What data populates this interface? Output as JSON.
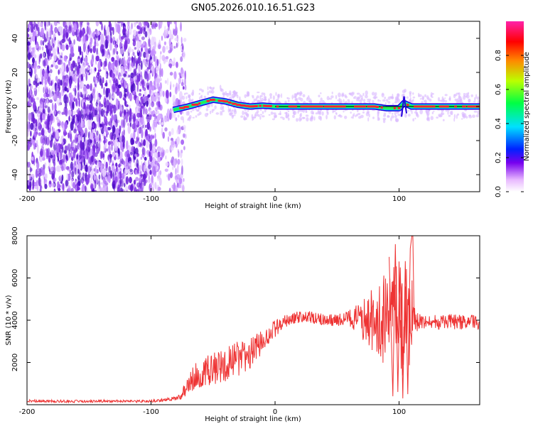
{
  "title": "GN05.2026.010.16.51.G23",
  "colors": {
    "snr_line": "#ee3333",
    "ridge_blue": "#2200dd",
    "ridge_green": "#22ee55",
    "ridge_red": "#ff2233",
    "noise_purple": "#7a2be0",
    "centerline": "#000000"
  },
  "chart_data": [
    {
      "type": "heatmap",
      "name": "spectrogram",
      "xlabel": "Height of straight line (km)",
      "ylabel": "Frequency (Hz)",
      "xlim": [
        -200,
        165
      ],
      "ylim": [
        -50,
        50
      ],
      "xticks": [
        -200,
        -100,
        0,
        100
      ],
      "yticks": [
        -40,
        -20,
        0,
        20,
        40
      ],
      "xtick_labels": [
        "-200",
        "-100",
        "0",
        "100"
      ],
      "ytick_labels": [
        "-40",
        "-20",
        "0",
        "20",
        "40"
      ],
      "noise_region_x": [
        -200,
        -78
      ],
      "ridge": {
        "x": [
          -82,
          -70,
          -60,
          -50,
          -40,
          -30,
          -20,
          -10,
          0,
          20,
          40,
          60,
          80,
          90,
          100,
          104,
          110,
          130,
          150,
          165
        ],
        "y": [
          -2,
          0,
          2,
          4,
          3,
          1,
          0,
          0.5,
          0,
          0,
          0,
          0,
          0,
          -1,
          -1,
          2,
          0,
          0,
          0,
          0
        ]
      },
      "colorbar": {
        "label": "Normalized spectral amplitude",
        "range": [
          0,
          1
        ],
        "ticks": [
          0.0,
          0.2,
          0.4,
          0.6,
          0.8
        ],
        "tick_labels": [
          "0.0",
          "0.2",
          "0.4",
          "0.6",
          "0.8"
        ]
      }
    },
    {
      "type": "line",
      "name": "snr",
      "xlabel": "Height of straight line (km)",
      "ylabel": "SNR (10 * v/v)",
      "xlim": [
        -200,
        165
      ],
      "ylim": [
        0,
        8000
      ],
      "xticks": [
        -200,
        -100,
        0,
        100
      ],
      "yticks": [
        2000,
        4000,
        6000,
        8000
      ],
      "xtick_labels": [
        "-200",
        "-100",
        "0",
        "100"
      ],
      "ytick_labels": [
        "2000",
        "4000",
        "6000",
        "8000"
      ],
      "series": [
        {
          "name": "SNR",
          "x": [
            -200,
            -180,
            -160,
            -140,
            -120,
            -100,
            -90,
            -80,
            -75,
            -70,
            -65,
            -60,
            -55,
            -50,
            -45,
            -40,
            -35,
            -30,
            -25,
            -20,
            -15,
            -10,
            -5,
            0,
            5,
            10,
            15,
            20,
            25,
            30,
            35,
            40,
            45,
            50,
            55,
            60,
            65,
            70,
            75,
            80,
            85,
            90,
            95,
            100,
            105,
            110,
            113,
            120,
            130,
            140,
            150,
            165
          ],
          "values": [
            180,
            170,
            160,
            170,
            160,
            170,
            220,
            300,
            500,
            900,
            1300,
            1500,
            1600,
            1700,
            1800,
            1900,
            2000,
            2150,
            2250,
            2400,
            2700,
            3000,
            3300,
            3600,
            3800,
            4000,
            4100,
            4150,
            4150,
            4100,
            4050,
            4050,
            4000,
            4000,
            4050,
            4100,
            4050,
            4000,
            4000,
            4000,
            4000,
            4000,
            4000,
            4000,
            4000,
            4000,
            3950,
            3850,
            3900,
            3950,
            3900,
            3900
          ],
          "noise_amplitude": [
            60,
            60,
            60,
            60,
            60,
            60,
            80,
            100,
            250,
            450,
            650,
            700,
            700,
            750,
            800,
            850,
            900,
            850,
            800,
            750,
            650,
            550,
            450,
            400,
            350,
            300,
            300,
            300,
            300,
            300,
            300,
            300,
            300,
            300,
            350,
            450,
            700,
            1000,
            1300,
            1700,
            2100,
            2400,
            2600,
            2800,
            2800,
            2200,
            500,
            350,
            350,
            350,
            350,
            350
          ]
        }
      ]
    }
  ]
}
